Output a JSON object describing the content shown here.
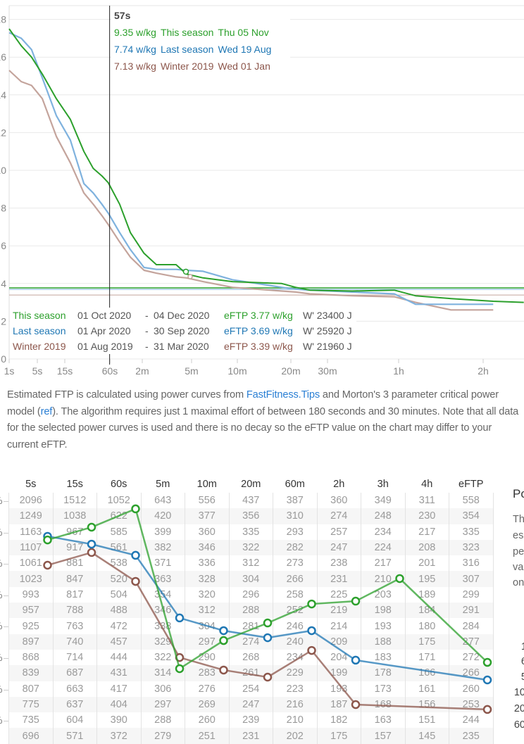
{
  "colors": {
    "this_season": "#2ca02c",
    "last_season": "#1f77b4",
    "winter_2019": "#8c564b",
    "grid": "#e9e9e9"
  },
  "chart_data": {
    "type": "line",
    "title": "",
    "xlabel": "Duration",
    "ylabel": "w/kg",
    "x_scale": "log-like",
    "x_ticks": [
      {
        "label": "1s",
        "sec": 1
      },
      {
        "label": "5s",
        "sec": 5
      },
      {
        "label": "15s",
        "sec": 15
      },
      {
        "label": "60s",
        "sec": 60
      },
      {
        "label": "2m",
        "sec": 120
      },
      {
        "label": "5m",
        "sec": 300
      },
      {
        "label": "10m",
        "sec": 600
      },
      {
        "label": "20m",
        "sec": 1200
      },
      {
        "label": "30m",
        "sec": 1800
      },
      {
        "label": "1h",
        "sec": 3600
      },
      {
        "label": "2h",
        "sec": 7200
      }
    ],
    "y_ticks": [
      "18",
      "16",
      "14",
      "12",
      "10",
      "8",
      "6",
      "4",
      "2",
      "0"
    ],
    "ylim": [
      0,
      18
    ],
    "grid": true,
    "x": [
      1,
      2,
      3.6,
      6.1,
      10.7,
      17.8,
      27,
      36,
      47,
      57,
      74,
      93,
      124,
      156,
      225,
      273,
      357,
      557,
      1066,
      1265,
      1480,
      2290,
      3450,
      4135,
      5530,
      7820,
      10050
    ],
    "series": [
      {
        "name": "This season",
        "color": "#2ca02c",
        "values": [
          17.5,
          16.6,
          16.0,
          15.1,
          13.8,
          12.7,
          11.0,
          10.1,
          9.7,
          9.35,
          8.2,
          6.7,
          5.6,
          5.0,
          5.0,
          4.5,
          4.3,
          4.1,
          4.0,
          3.8,
          3.65,
          3.6,
          3.65,
          3.35,
          3.2,
          3.06,
          3.0
        ],
        "eftp": 3.77
      },
      {
        "name": "Last season",
        "color": "#7fb2de",
        "values": [
          17.3,
          17.0,
          16.4,
          14.9,
          12.9,
          11.6,
          9.3,
          8.8,
          8.2,
          7.74,
          6.7,
          5.8,
          4.85,
          4.75,
          4.75,
          4.7,
          4.65,
          4.2,
          3.8,
          3.7,
          3.65,
          3.55,
          3.45,
          2.9,
          2.9,
          2.9,
          null
        ],
        "eftp": 3.69
      },
      {
        "name": "Winter 2019",
        "color": "#c4a49c",
        "values": [
          15.3,
          14.7,
          14.5,
          13.8,
          11.8,
          10.4,
          8.8,
          8.2,
          7.6,
          7.13,
          6.2,
          5.4,
          4.7,
          4.55,
          4.35,
          4.3,
          4.1,
          3.8,
          3.6,
          3.55,
          3.45,
          3.35,
          3.3,
          3.0,
          2.6,
          2.6,
          null
        ],
        "eftp": 3.39
      }
    ],
    "cursor": {
      "sec": 57,
      "label": "57s"
    }
  },
  "tooltip": {
    "duration": "57s",
    "rows": [
      {
        "value": "9.35 w/kg",
        "name": "This season",
        "date": "Thu 05 Nov"
      },
      {
        "value": "7.74 w/kg",
        "name": "Last season",
        "date": "Wed 19 Aug"
      },
      {
        "value": "7.13 w/kg",
        "name": "Winter 2019",
        "date": "Wed 01 Jan"
      }
    ]
  },
  "legend": [
    {
      "name": "This season",
      "start": "01 Oct 2020",
      "sep": "-",
      "end": "04 Dec 2020",
      "eftp": "eFTP 3.77 w/kg",
      "wprime": "W' 23400 J"
    },
    {
      "name": "Last season",
      "start": "01 Apr 2020",
      "sep": "-",
      "end": "30 Sep 2020",
      "eftp": "eFTP 3.69 w/kg",
      "wprime": "W' 25920 J"
    },
    {
      "name": "Winter 2019",
      "start": "01 Aug 2019",
      "sep": "-",
      "end": "31 Mar 2020",
      "eftp": "eFTP 3.39 w/kg",
      "wprime": "W' 21960 J"
    }
  ],
  "description": {
    "p1": "Estimated FTP is calculated using power curves from ",
    "link1": "FastFitness.Tips",
    "p2": " and Morton's 3 parameter critical power model (",
    "link2": "ref",
    "p3": "). The algorithm requires just 1 maximal effort of between 180 seconds and 30 minutes. Note that all data for the selected power curves is used and there is no decay so the eFTP value on the chart may differ to your current eFTP."
  },
  "table": {
    "headers": [
      "5s",
      "15s",
      "60s",
      "5m",
      "10m",
      "20m",
      "60m",
      "2h",
      "3h",
      "4h",
      "eFTP"
    ],
    "row_labels": [
      "%",
      "%",
      "%",
      "%",
      "%",
      "%",
      "%",
      "%"
    ],
    "rows": [
      [
        "2096",
        "1512",
        "1052",
        "643",
        "556",
        "437",
        "387",
        "360",
        "349",
        "311",
        "558"
      ],
      [
        "1249",
        "1038",
        "622",
        "420",
        "377",
        "356",
        "310",
        "274",
        "248",
        "230",
        "354"
      ],
      [
        "1163",
        "967",
        "585",
        "399",
        "360",
        "335",
        "293",
        "257",
        "234",
        "217",
        "335"
      ],
      [
        "1107",
        "917",
        "561",
        "382",
        "346",
        "322",
        "282",
        "247",
        "224",
        "208",
        "323"
      ],
      [
        "1061",
        "881",
        "538",
        "371",
        "336",
        "312",
        "273",
        "238",
        "217",
        "201",
        "316"
      ],
      [
        "1023",
        "847",
        "520",
        "363",
        "328",
        "304",
        "266",
        "231",
        "210",
        "195",
        "307"
      ],
      [
        "993",
        "817",
        "504",
        "354",
        "320",
        "296",
        "258",
        "225",
        "203",
        "189",
        "299"
      ],
      [
        "957",
        "788",
        "488",
        "346",
        "312",
        "288",
        "252",
        "219",
        "198",
        "184",
        "291"
      ],
      [
        "925",
        "763",
        "472",
        "338",
        "304",
        "281",
        "246",
        "214",
        "193",
        "180",
        "284"
      ],
      [
        "897",
        "740",
        "457",
        "329",
        "297",
        "274",
        "240",
        "209",
        "188",
        "175",
        "277"
      ],
      [
        "868",
        "714",
        "444",
        "322",
        "290",
        "268",
        "234",
        "204",
        "183",
        "171",
        "272"
      ],
      [
        "839",
        "687",
        "431",
        "314",
        "283",
        "261",
        "229",
        "199",
        "178",
        "166",
        "266"
      ],
      [
        "807",
        "663",
        "417",
        "306",
        "276",
        "254",
        "223",
        "193",
        "173",
        "161",
        "260"
      ],
      [
        "775",
        "637",
        "404",
        "297",
        "269",
        "247",
        "216",
        "187",
        "168",
        "156",
        "253"
      ],
      [
        "735",
        "604",
        "390",
        "288",
        "260",
        "239",
        "210",
        "182",
        "163",
        "151",
        "244"
      ],
      [
        "696",
        "571",
        "372",
        "279",
        "251",
        "231",
        "202",
        "175",
        "157",
        "145",
        "235"
      ]
    ],
    "rank_series": [
      {
        "name": "This season",
        "color": "#2ca02c",
        "ranks": [
          2.47,
          1.66,
          0.49,
          10.67,
          8.88,
          7.76,
          6.55,
          6.37,
          4.93,
          null,
          10.27
        ]
      },
      {
        "name": "Last season",
        "color": "#1f77b4",
        "ranks": [
          2.24,
          2.74,
          3.45,
          7.44,
          8.25,
          8.7,
          8.25,
          10.13,
          null,
          null,
          11.39
        ]
      },
      {
        "name": "Winter 2019",
        "color": "#8c564b",
        "ranks": [
          4.08,
          3.27,
          5.11,
          9.96,
          10.76,
          11.21,
          9.51,
          12.96,
          null,
          null,
          13.27
        ]
      }
    ]
  },
  "side_panel": {
    "title": "Po",
    "lines": [
      "Th",
      "es",
      "pe",
      "va",
      "on"
    ],
    "numbers": [
      "1",
      "6",
      "5",
      "10",
      "20",
      "60"
    ]
  }
}
